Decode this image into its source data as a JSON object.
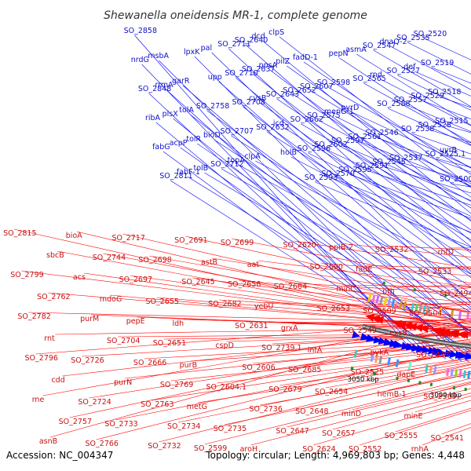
{
  "title": "Shewanella oneidensis MR-1, complete genome",
  "accession": "Accession: NC_004347",
  "summary": "Topology: circular; Length: 4,969,803 bp; Genes: 4,448",
  "colors": {
    "forward_strand": "#0000ff",
    "reverse_strand": "#ff0000",
    "backbone": "#808080",
    "ticks": "#228b22"
  },
  "kbp_labels": [
    "3050 kbp",
    "3000 kbp",
    "2950 kbp",
    "2900 kbp",
    "2850 kbp",
    "2800 kbp",
    "2750 kbp",
    "2700 kbp",
    "2650 kbp"
  ],
  "top_genes": [
    "SO_2858",
    "nrdG",
    "SO_2848",
    "ribA",
    "fabG",
    "SO_2811",
    "msbA",
    "rrmA",
    "plsX",
    "acpP",
    "fabF-1",
    "lpxK",
    "garR",
    "tolA",
    "tolR",
    "tolB",
    "pal",
    "upp",
    "SO_2758",
    "bioD",
    "SO_2712",
    "SO_2711",
    "SO_2710",
    "SO_2708",
    "SO_2707",
    "topA",
    "SO_2640",
    "SO_2637",
    "cysB",
    "SO_2632",
    "clpA",
    "dcd",
    "ppsA",
    "SO_2643",
    "icd",
    "holB",
    "clpS",
    "pilZ",
    "SO_2652",
    "SO_2662",
    "SO_2596",
    "SO_2593",
    "fadD-1",
    "SO_2607",
    "SO_2575",
    "SO_2602",
    "SO_2570",
    "pepN",
    "SO_2598",
    "menG-1",
    "SO_2597",
    "SO_2595",
    "asmA",
    "SO_2565",
    "pyrD",
    "SO_2561",
    "SO_2591",
    "SO_2547",
    "rnd",
    "SO_2588",
    "SO_2546",
    "SO_2545",
    "dnaQ-2",
    "SO_2527",
    "SO_2557",
    "SO_2538",
    "SO_2537",
    "SO_2535",
    "def",
    "SO_2529",
    "SO_2528",
    "SO_2525.1",
    "SO_2520",
    "SO_2519",
    "SO_2518",
    "SO_2515",
    "uvrB",
    "SO_2500"
  ],
  "bottom_genes": [
    "SO_2815",
    "SO_2799",
    "SO_2782",
    "SO_2796",
    "rne",
    "asnB",
    "sbcB",
    "SO_2762",
    "rnt",
    "cdd",
    "SO_2757",
    "bioA",
    "acs",
    "purM",
    "SO_2726",
    "SO_2724",
    "SO_2766",
    "SO_2744",
    "mdoG",
    "SO_2704",
    "purN",
    "SO_2733",
    "SO_2717",
    "SO_2697",
    "pepE",
    "SO_2666",
    "SO_2763",
    "SO_2732",
    "SO_2698",
    "SO_2655",
    "SO_2651",
    "SO_2769",
    "SO_2734",
    "SO_2691",
    "SO_2645",
    "ldh",
    "purB",
    "metG",
    "SO_2599",
    "astB",
    "SO_2682",
    "cspD",
    "SO_2604.1",
    "SO_2735",
    "SO_2699",
    "SO_2656",
    "SO_2631",
    "SO_2606",
    "SO_2736",
    "aroH",
    "aat",
    "yebU",
    "SO_2739.1",
    "SO_2679",
    "SO_2647",
    "SO_2620",
    "SO_2684",
    "grxA",
    "SO_2685",
    "SO_2648",
    "SO_2624",
    "SO_2690",
    "SO_2653",
    "infA",
    "SO_2654",
    "SO_2657",
    "ppiB-2",
    "minC",
    "SO_2549",
    "SO_2525",
    "minD",
    "SO_2552",
    "fadE",
    "SO_2509",
    "pykA",
    "hemB-1",
    "SO_2555",
    "SO_2532",
    "nth",
    "exsB",
    "dapE",
    "minE",
    "rnhA",
    "SO_2533",
    "SO_2504",
    "SO_2477",
    "SO_2569",
    "SO_2541",
    "rnfD",
    "SO_2494",
    "kdsB"
  ]
}
